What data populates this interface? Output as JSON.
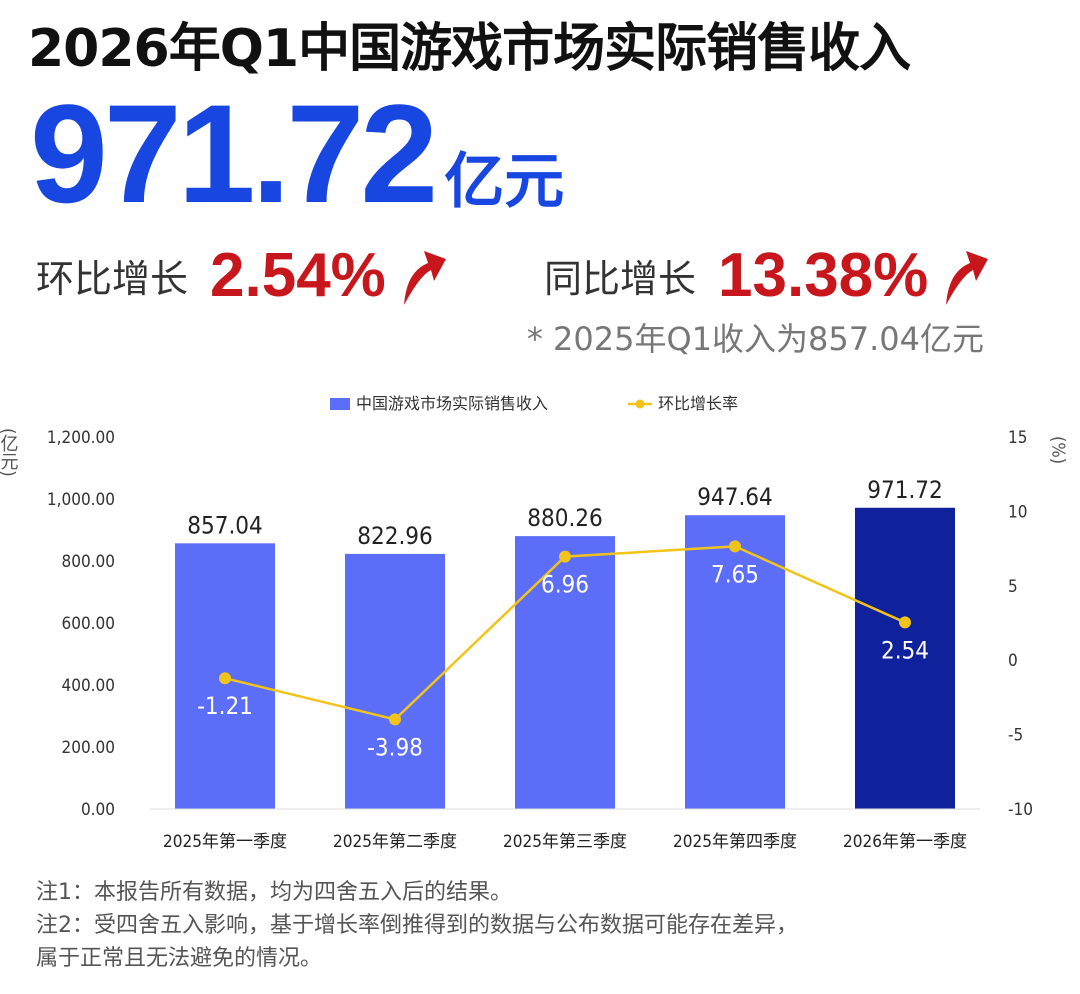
{
  "header": {
    "title": "2026年Q1中国游戏市场实际销售收入",
    "value": "971.72",
    "unit": "亿元"
  },
  "growth": {
    "qoq_label": "环比增长",
    "qoq_value": "2.54%",
    "yoy_label": "同比增长",
    "yoy_value": "13.38%",
    "note": "* 2025年Q1收入为857.04亿元",
    "arrow_icon": "up-arrow-icon",
    "color": "#c8161d"
  },
  "chart_data": {
    "type": "bar",
    "categories": [
      "2025年第一季度",
      "2025年第二季度",
      "2025年第三季度",
      "2025年第四季度",
      "2026年第一季度"
    ],
    "series": [
      {
        "name": "中国游戏市场实际销售收入",
        "type": "bar",
        "axis": "left",
        "values": [
          857.04,
          822.96,
          880.26,
          947.64,
          971.72
        ],
        "labels": [
          "857.04",
          "822.96",
          "880.26",
          "947.64",
          "971.72"
        ],
        "color": "#5c6ef7",
        "highlight_color": "#0f229c"
      },
      {
        "name": "环比增长率",
        "type": "line",
        "axis": "right",
        "values": [
          -1.21,
          -3.98,
          6.96,
          7.65,
          2.54
        ],
        "labels": [
          "-1.21",
          "-3.98",
          "6.96",
          "7.65",
          "2.54"
        ],
        "color": "#f2c318"
      }
    ],
    "ylabel": "亿元",
    "ylabel_right": "%",
    "ylim": [
      0,
      1200
    ],
    "ylim_right": [
      -10,
      15
    ],
    "yticks": [
      "0.00",
      "200.00",
      "400.00",
      "600.00",
      "800.00",
      "1,000.00",
      "1,200.00"
    ],
    "yticks_right": [
      "-10",
      "-5",
      "0",
      "5",
      "10",
      "15"
    ],
    "legend_position": "top-center",
    "grid": false
  },
  "footnotes": {
    "note1": "注1：本报告所有数据，均为四舍五入后的结果。",
    "note2": "注2：受四舍五入影响，基于增长率倒推得到的数据与公布数据可能存在差异，",
    "note3": "属于正常且无法避免的情况。"
  }
}
